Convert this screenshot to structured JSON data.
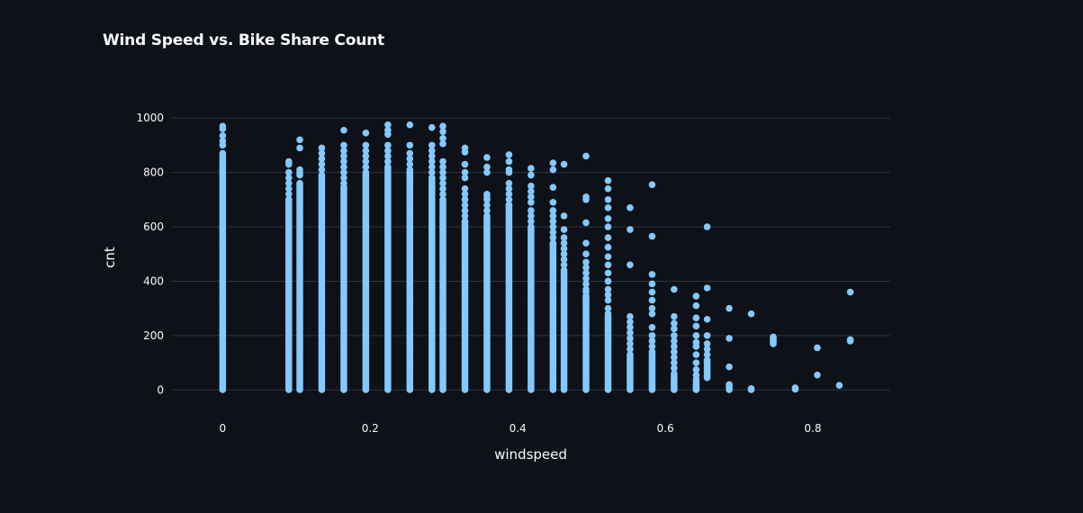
{
  "chart_data": {
    "type": "scatter",
    "title": "Wind Speed vs. Bike Share Count",
    "xlabel": "windspeed",
    "ylabel": "cnt",
    "xlim": [
      -0.07,
      0.905
    ],
    "ylim": [
      -95,
      1070
    ],
    "xticks": [
      0,
      0.2,
      0.4,
      0.6,
      0.8
    ],
    "xtick_labels": [
      "0",
      "0.2",
      "0.4",
      "0.6",
      "0.8"
    ],
    "yticks": [
      0,
      200,
      400,
      600,
      800,
      1000
    ],
    "ytick_labels": [
      "0",
      "200",
      "400",
      "600",
      "800",
      "1000"
    ],
    "grid": "horizontal",
    "marker_color": "#83c9ff",
    "background": "#0e1117",
    "columns": [
      {
        "x": 0.0,
        "range": [
          1,
          840
        ],
        "extra": [
          970,
          960,
          935,
          915,
          900,
          870,
          860,
          850
        ]
      },
      {
        "x": 0.0896,
        "range": [
          1,
          700
        ],
        "extra": [
          840,
          830,
          800,
          780,
          760,
          740,
          720
        ]
      },
      {
        "x": 0.1045,
        "range": [
          1,
          760
        ],
        "extra": [
          920,
          890,
          810,
          800,
          790
        ]
      },
      {
        "x": 0.1343,
        "range": [
          1,
          790
        ],
        "extra": [
          890,
          870,
          850,
          830,
          810
        ]
      },
      {
        "x": 0.1642,
        "range": [
          1,
          745
        ],
        "extra": [
          955,
          900,
          880,
          860,
          840,
          820,
          800,
          780,
          760
        ]
      },
      {
        "x": 0.194,
        "range": [
          1,
          790
        ],
        "extra": [
          945,
          900,
          880,
          860,
          840,
          820,
          800
        ]
      },
      {
        "x": 0.2239,
        "range": [
          1,
          820
        ],
        "extra": [
          975,
          955,
          940,
          900,
          880,
          860,
          840
        ]
      },
      {
        "x": 0.2537,
        "range": [
          1,
          800
        ],
        "extra": [
          975,
          900,
          870,
          850,
          830,
          810
        ]
      },
      {
        "x": 0.2836,
        "range": [
          1,
          780
        ],
        "extra": [
          965,
          900,
          880,
          860,
          840,
          820,
          800
        ]
      },
      {
        "x": 0.2985,
        "range": [
          1,
          700
        ],
        "extra": [
          970,
          950,
          925,
          905,
          840,
          820,
          800,
          780,
          760,
          740,
          720
        ]
      },
      {
        "x": 0.3284,
        "range": [
          1,
          620
        ],
        "extra": [
          890,
          875,
          830,
          800,
          780,
          740,
          720,
          700,
          680,
          660,
          640
        ]
      },
      {
        "x": 0.3582,
        "range": [
          1,
          640
        ],
        "extra": [
          855,
          820,
          800,
          720,
          710,
          700,
          680,
          660
        ]
      },
      {
        "x": 0.3881,
        "range": [
          1,
          680
        ],
        "extra": [
          865,
          840,
          810,
          800,
          760,
          740,
          720,
          700
        ]
      },
      {
        "x": 0.4179,
        "range": [
          1,
          600
        ],
        "extra": [
          815,
          790,
          750,
          730,
          710,
          690,
          660,
          640,
          620
        ]
      },
      {
        "x": 0.4478,
        "range": [
          1,
          540
        ],
        "extra": [
          835,
          810,
          745,
          690,
          660,
          640,
          620,
          600,
          580,
          560
        ]
      },
      {
        "x": 0.4627,
        "range": [
          1,
          430
        ],
        "extra": [
          830,
          640,
          590,
          560,
          540,
          520,
          500,
          480,
          460,
          440
        ]
      },
      {
        "x": 0.4925,
        "range": [
          1,
          345
        ],
        "extra": [
          860,
          710,
          700,
          615,
          540,
          500,
          470,
          450,
          430,
          410,
          390,
          370,
          360
        ]
      },
      {
        "x": 0.5224,
        "range": [
          1,
          270
        ],
        "extra": [
          770,
          740,
          700,
          670,
          630,
          600,
          560,
          525,
          490,
          460,
          430,
          400,
          370,
          350,
          330,
          300,
          280
        ]
      },
      {
        "x": 0.5522,
        "range": [
          1,
          130
        ],
        "extra": [
          670,
          590,
          460,
          270,
          250,
          230,
          210,
          190,
          170,
          150
        ]
      },
      {
        "x": 0.5821,
        "range": [
          1,
          130
        ],
        "extra": [
          755,
          565,
          425,
          390,
          360,
          330,
          300,
          280,
          230,
          200,
          180,
          160,
          140
        ]
      },
      {
        "x": 0.6119,
        "range": [
          1,
          30
        ],
        "extra": [
          370,
          270,
          245,
          225,
          200,
          180,
          160,
          140,
          120,
          100,
          80,
          60,
          50,
          40
        ]
      },
      {
        "x": 0.6418,
        "range": [
          1,
          20
        ],
        "extra": [
          345,
          310,
          265,
          235,
          200,
          175,
          160,
          130,
          100,
          75,
          55,
          40,
          30
        ]
      },
      {
        "x": 0.6567,
        "range": [
          45,
          110
        ],
        "extra": [
          600,
          375,
          260,
          200,
          170,
          150,
          130
        ]
      },
      {
        "x": 0.6866,
        "range": [
          1,
          20
        ],
        "extra": [
          300,
          190,
          85
        ]
      },
      {
        "x": 0.7164,
        "range": [
          1,
          5
        ],
        "extra": [
          280
        ]
      },
      {
        "x": 0.7463,
        "range": [
          170,
          195
        ],
        "extra": [
          180
        ]
      },
      {
        "x": 0.7761,
        "range": [
          3,
          8
        ],
        "extra": []
      },
      {
        "x": 0.806,
        "range": [
          55,
          55
        ],
        "extra": [
          155
        ]
      },
      {
        "x": 0.8358,
        "range": [
          17,
          17
        ],
        "extra": []
      },
      {
        "x": 0.8507,
        "range": [
          180,
          185
        ],
        "extra": [
          360
        ]
      }
    ]
  }
}
